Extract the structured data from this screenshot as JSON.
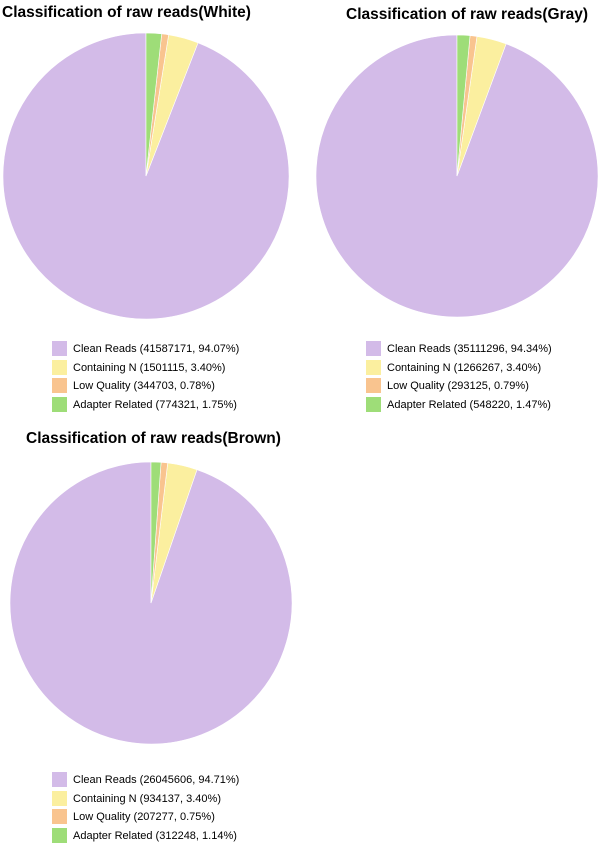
{
  "colors": {
    "clean": "#D3BBE8",
    "containing_n": "#FBEF9F",
    "low_quality": "#F9C48F",
    "adapter": "#9EDD78"
  },
  "chart_data": [
    {
      "type": "pie",
      "title": "Classification of raw reads(White)",
      "categories": [
        "Clean Reads",
        "Containing N",
        "Low Quality",
        "Adapter Related"
      ],
      "values": [
        41587171,
        1501115,
        344703,
        774321
      ],
      "percents": [
        94.07,
        3.4,
        0.78,
        1.75
      ],
      "legend_labels": [
        "Clean Reads (41587171, 94.07%)",
        "Containing N (1501115, 3.40%)",
        "Low Quality (344703, 0.78%)",
        "Adapter Related (774321, 1.75%)"
      ],
      "legend_position": "bottom"
    },
    {
      "type": "pie",
      "title": "Classification of raw reads(Gray)",
      "categories": [
        "Clean Reads",
        "Containing N",
        "Low Quality",
        "Adapter Related"
      ],
      "values": [
        35111296,
        1266267,
        293125,
        548220
      ],
      "percents": [
        94.34,
        3.4,
        0.79,
        1.47
      ],
      "legend_labels": [
        "Clean Reads (35111296, 94.34%)",
        "Containing N (1266267, 3.40%)",
        "Low Quality (293125, 0.79%)",
        "Adapter Related (548220, 1.47%)"
      ],
      "legend_position": "bottom"
    },
    {
      "type": "pie",
      "title": "Classification of raw reads(Brown)",
      "categories": [
        "Clean Reads",
        "Containing N",
        "Low Quality",
        "Adapter Related"
      ],
      "values": [
        26045606,
        934137,
        207277,
        312248
      ],
      "percents": [
        94.71,
        3.4,
        0.75,
        1.14
      ],
      "legend_labels": [
        "Clean Reads (26045606, 94.71%)",
        "Containing N (934137, 3.40%)",
        "Low Quality (207277, 0.75%)",
        "Adapter Related (312248, 1.14%)"
      ],
      "legend_position": "bottom"
    }
  ]
}
